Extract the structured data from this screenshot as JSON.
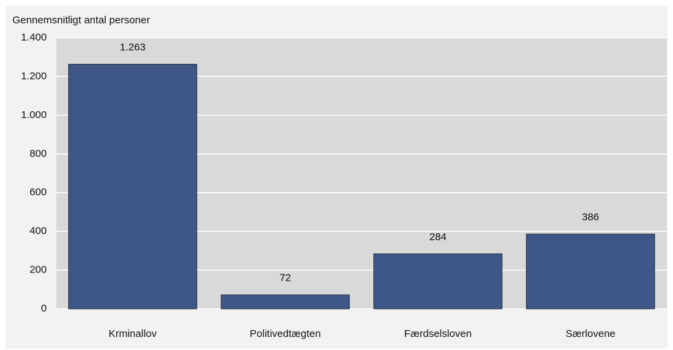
{
  "chart_data": {
    "type": "bar",
    "y_axis_label": "Gennemsnitligt antal personer",
    "categories": [
      "Krminallov",
      "Politivedtægten",
      "Færdselsloven",
      "Særlovene"
    ],
    "values": [
      1263,
      72,
      284,
      386
    ],
    "value_labels": [
      "1.263",
      "72",
      "284",
      "386"
    ],
    "color": "#3f5787",
    "ylim": [
      0,
      1400
    ],
    "yticks": [
      0,
      200,
      400,
      600,
      800,
      {
        "value": 1000,
        "label": "1.000"
      },
      {
        "value": 1200,
        "label": "1.200"
      },
      {
        "value": 1400,
        "label": "1.400"
      }
    ],
    "grid": true
  }
}
